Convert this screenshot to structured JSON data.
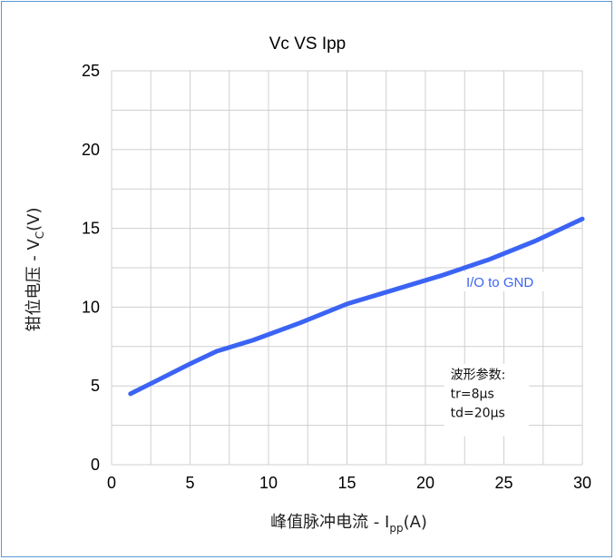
{
  "chart_data": {
    "type": "line",
    "title": "Vc VS Ipp",
    "xlabel": {
      "main": "峰值脉冲电流 - I",
      "sub": "pp",
      "unit": "(A)"
    },
    "ylabel": {
      "main": "钳位电压 - V",
      "sub": "C",
      "unit": "(V)"
    },
    "xlim": [
      0,
      30
    ],
    "ylim": [
      0,
      25
    ],
    "xticks": [
      0,
      5,
      10,
      15,
      20,
      25,
      30
    ],
    "yticks": [
      0,
      5,
      10,
      15,
      20,
      25
    ],
    "grid": true,
    "series": [
      {
        "name": "I/O to GND",
        "color": "#3b64f4",
        "x": [
          1.2,
          3,
          5,
          6.7,
          9,
          12,
          15,
          18,
          21,
          24,
          27,
          30
        ],
        "y": [
          4.5,
          5.4,
          6.4,
          7.2,
          7.9,
          9.0,
          10.2,
          11.1,
          12.0,
          13.0,
          14.2,
          15.6
        ]
      }
    ],
    "annotation": {
      "lines": [
        "波形参数:",
        "tr=8μs",
        "td=20μs"
      ]
    }
  }
}
